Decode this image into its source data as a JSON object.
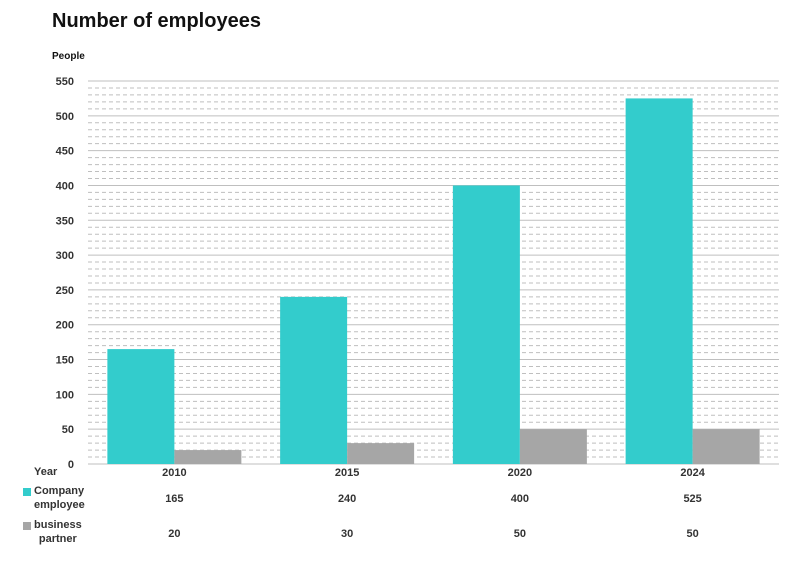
{
  "title": "Number of employees",
  "unit_label": "People",
  "table": {
    "year_label": "Year",
    "rows": [
      {
        "label_line1": "Company",
        "label_line2": "employee",
        "color": "#33CCCC"
      },
      {
        "label_line1": "business",
        "label_line2": "partner",
        "color": "#A6A6A6"
      }
    ]
  },
  "chart_data": {
    "type": "bar",
    "title": "Number of employees",
    "ylabel": "People",
    "xlabel": "Year",
    "categories": [
      "2010",
      "2015",
      "2020",
      "2024"
    ],
    "series": [
      {
        "name": "Company employee",
        "values": [
          165,
          240,
          400,
          525
        ],
        "color": "#33CCCC"
      },
      {
        "name": "business partner",
        "values": [
          20,
          30,
          50,
          50
        ],
        "color": "#A6A6A6"
      }
    ],
    "ylim": [
      0,
      550
    ],
    "yticks": [
      0,
      50,
      100,
      150,
      200,
      250,
      300,
      350,
      400,
      450,
      500,
      550
    ],
    "grid": true,
    "legend": "data table below chart"
  }
}
